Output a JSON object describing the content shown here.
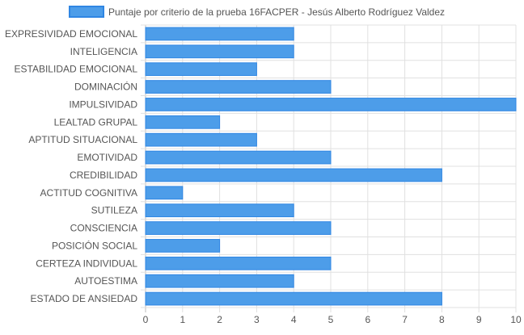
{
  "chart_data": {
    "type": "bar",
    "orientation": "horizontal",
    "legend": {
      "position": "top",
      "label": "Puntaje por criterio de la prueba 16FACPER - Jesús Alberto Rodríguez Valdez"
    },
    "categories": [
      "EXPRESIVIDAD EMOCIONAL",
      "INTELIGENCIA",
      "ESTABILIDAD EMOCIONAL",
      "DOMINACIÓN",
      "IMPULSIVIDAD",
      "LEALTAD GRUPAL",
      "APTITUD SITUACIONAL",
      "EMOTIVIDAD",
      "CREDIBILIDAD",
      "ACTITUD COGNITIVA",
      "SUTILEZA",
      "CONSCIENCIA",
      "POSICIÓN SOCIAL",
      "CERTEZA INDIVIDUAL",
      "AUTOESTIMA",
      "ESTADO DE ANSIEDAD"
    ],
    "series": [
      {
        "name": "Puntaje por criterio de la prueba 16FACPER - Jesús Alberto Rodríguez Valdez",
        "values": [
          4,
          4,
          3,
          5,
          10,
          2,
          3,
          5,
          8,
          1,
          4,
          5,
          2,
          5,
          4,
          8
        ]
      }
    ],
    "xlim": [
      0,
      10
    ],
    "xticks": [
      "0",
      "1",
      "2",
      "3",
      "4",
      "5",
      "6",
      "7",
      "8",
      "9",
      "10"
    ],
    "grid": true,
    "colors": {
      "bar": "#4d9de9",
      "bar_border": "#2f86e3",
      "grid": "#e0e0e0",
      "text": "#555555"
    }
  }
}
